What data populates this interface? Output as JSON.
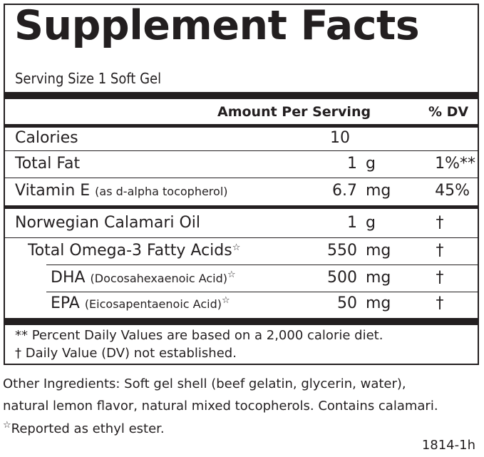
{
  "panel": {
    "title": "Supplement Facts",
    "serving_size": "Serving Size 1 Soft Gel",
    "header": {
      "amount": "Amount Per Serving",
      "dv": "% DV"
    },
    "rows": [
      {
        "name": "Calories",
        "note": "",
        "amount": "10",
        "unit": "",
        "dv": ""
      },
      {
        "name": "Total Fat",
        "note": "",
        "amount": "1",
        "unit": "g",
        "dv": "1%**"
      },
      {
        "name": "Vitamin E",
        "note": "(as d-alpha tocopherol)",
        "amount": "6.7",
        "unit": "mg",
        "dv": "45%"
      },
      {
        "name": "Norwegian Calamari Oil",
        "note": "",
        "amount": "1",
        "unit": "g",
        "dv": "†"
      },
      {
        "name": "Total Omega-3 Fatty Acids",
        "note": "",
        "star": "☆",
        "amount": "550",
        "unit": "mg",
        "dv": "†"
      },
      {
        "name": "DHA",
        "note": "(Docosahexaenoic Acid)",
        "star": "☆",
        "amount": "500",
        "unit": "mg",
        "dv": "†"
      },
      {
        "name": "EPA",
        "note": "(Eicosapentaenoic Acid)",
        "star": "☆",
        "amount": "50",
        "unit": "mg",
        "dv": "†"
      }
    ],
    "footnotes": [
      "** Percent Daily Values are based on a 2,000 calorie diet.",
      "† Daily Value (DV) not established."
    ]
  },
  "other_ingredients": {
    "line1": "Other Ingredients: Soft gel shell (beef gelatin, glycerin, water),",
    "line2": "natural lemon flavor, natural mixed tocopherols.   Contains calamari.",
    "line3_star": "☆",
    "line3": "Reported as ethyl ester."
  },
  "code": "1814-1h"
}
